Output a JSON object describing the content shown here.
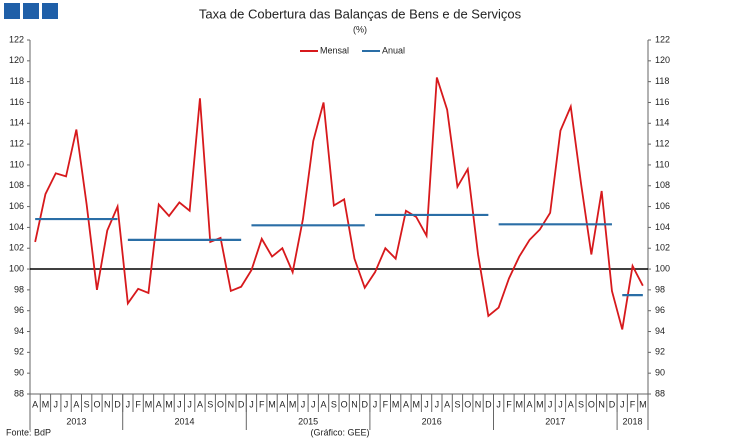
{
  "chart_data": {
    "type": "line",
    "title": "Taxa de Cobertura das Balanças de Bens e de Serviços",
    "subtitle": "(%)",
    "categories": [
      "A",
      "M",
      "J",
      "J",
      "A",
      "S",
      "O",
      "N",
      "D",
      "J",
      "F",
      "M",
      "A",
      "M",
      "J",
      "J",
      "A",
      "S",
      "O",
      "N",
      "D",
      "J",
      "F",
      "M",
      "A",
      "M",
      "J",
      "J",
      "A",
      "S",
      "O",
      "N",
      "D",
      "J",
      "F",
      "M",
      "A",
      "M",
      "J",
      "J",
      "A",
      "S",
      "O",
      "N",
      "D",
      "J",
      "F",
      "M",
      "A",
      "M",
      "J",
      "J",
      "A",
      "S",
      "O",
      "N",
      "D",
      "J",
      "F",
      "M"
    ],
    "year_labels": [
      "2013",
      "2014",
      "2015",
      "2016",
      "2017",
      "2018"
    ],
    "series": [
      {
        "name": "Mensal",
        "color": "#d7191c",
        "values": [
          102.6,
          107.2,
          109.2,
          108.9,
          113.4,
          106.2,
          98.0,
          103.7,
          106.0,
          96.7,
          98.1,
          97.7,
          106.2,
          105.1,
          106.4,
          105.6,
          116.4,
          102.6,
          103.0,
          97.9,
          98.3,
          99.9,
          102.9,
          101.2,
          102.0,
          99.7,
          104.8,
          112.3,
          116.0,
          106.1,
          106.7,
          101.0,
          98.2,
          99.7,
          102.0,
          101.0,
          105.6,
          105.0,
          103.2,
          118.4,
          115.3,
          107.9,
          109.6,
          101.4,
          95.5,
          96.3,
          99.1,
          101.2,
          102.8,
          103.8,
          105.4,
          113.3,
          115.6,
          108.2,
          101.4,
          107.5,
          97.9,
          94.2,
          100.3,
          98.4
        ]
      },
      {
        "name": "Anual",
        "color": "#2a6ea6",
        "values": [
          104.8,
          104.8,
          104.8,
          104.8,
          104.8,
          104.8,
          104.8,
          104.8,
          104.8,
          102.8,
          102.8,
          102.8,
          102.8,
          102.8,
          102.8,
          102.8,
          102.8,
          102.8,
          102.8,
          102.8,
          102.8,
          104.2,
          104.2,
          104.2,
          104.2,
          104.2,
          104.2,
          104.2,
          104.2,
          104.2,
          104.2,
          104.2,
          104.2,
          105.2,
          105.2,
          105.2,
          105.2,
          105.2,
          105.2,
          105.2,
          105.2,
          105.2,
          105.2,
          105.2,
          105.2,
          104.3,
          104.3,
          104.3,
          104.3,
          104.3,
          104.3,
          104.3,
          104.3,
          104.3,
          104.3,
          104.3,
          104.3,
          97.5,
          97.5,
          97.5
        ]
      }
    ],
    "ylim": [
      88,
      122
    ],
    "yticks": [
      88,
      90,
      92,
      94,
      96,
      98,
      100,
      102,
      104,
      106,
      108,
      110,
      112,
      114,
      116,
      118,
      120,
      122
    ],
    "y2lim": [
      88,
      122
    ],
    "y2ticks": [
      88,
      90,
      92,
      94,
      96,
      98,
      100,
      102,
      104,
      106,
      108,
      110,
      112,
      114,
      116,
      118,
      120,
      122
    ],
    "reference_line": 100,
    "source": "Fonte: BdP",
    "credit": "(Gráfico: GEE)"
  }
}
